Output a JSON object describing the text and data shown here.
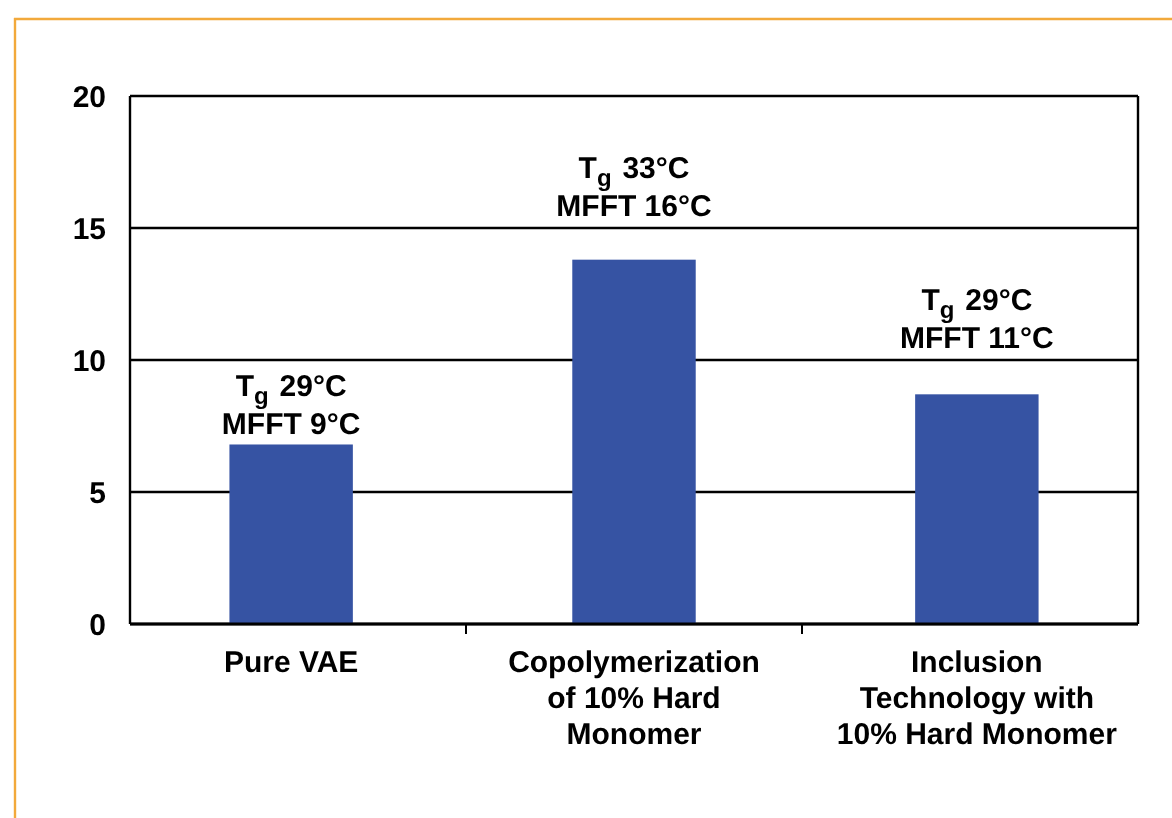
{
  "chart_data": {
    "type": "bar",
    "categories": [
      "Pure VAE",
      "Copolymerization of 10% Hard Monomer",
      "Inclusion Technology with 10% Hard Monomer"
    ],
    "values": [
      6.8,
      13.8,
      8.7
    ],
    "color": "#3653a3",
    "ylim": [
      0,
      20
    ],
    "yticks": [
      0,
      5,
      10,
      15,
      20
    ],
    "grid": "y",
    "annotations": [
      "T$_{g}$ 29°C\nMFFT 9°C",
      "T$_{g}$ 33°C\nMFFT 16°C",
      "T$_{g}$ 29°C\nMFFT 11°C"
    ]
  }
}
